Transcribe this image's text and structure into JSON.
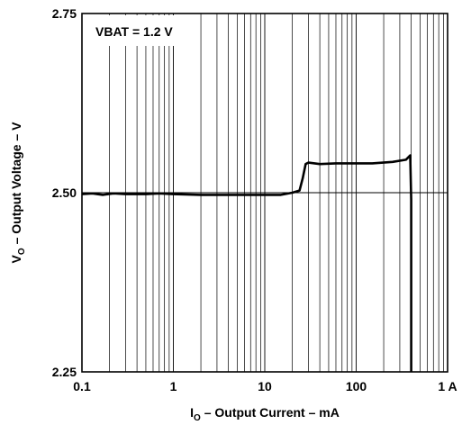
{
  "chart_data": {
    "type": "line",
    "title": "",
    "annotation": "VBAT = 1.2 V",
    "xlabel": {
      "prefix": "I",
      "subscript": "O",
      "rest": " – Output Current – mA"
    },
    "ylabel": {
      "prefix": "V",
      "subscript": "O",
      "rest": " – Output Voltage – V"
    },
    "x_scale": "log",
    "xlim": [
      0.1,
      1000
    ],
    "ylim": [
      2.25,
      2.75
    ],
    "x_ticks": [
      {
        "value": 0.1,
        "label": "0.1"
      },
      {
        "value": 1,
        "label": "1"
      },
      {
        "value": 10,
        "label": "10"
      },
      {
        "value": 100,
        "label": "100"
      },
      {
        "value": 1000,
        "label": "1 A"
      }
    ],
    "y_ticks": [
      {
        "value": 2.25,
        "label": "2.25"
      },
      {
        "value": 2.5,
        "label": "2.50"
      },
      {
        "value": 2.75,
        "label": "2.75"
      }
    ],
    "grid": "log vertical minor grid, horizontal line at 2.50",
    "series": [
      {
        "x": [
          0.1,
          0.13,
          0.17,
          0.22,
          0.3,
          0.5,
          0.7,
          1,
          2,
          5,
          10,
          15,
          20,
          24,
          26,
          28,
          30,
          40,
          60,
          100,
          150,
          250,
          350,
          390,
          400,
          400
        ],
        "y": [
          2.498,
          2.499,
          2.497,
          2.499,
          2.498,
          2.498,
          2.499,
          2.498,
          2.497,
          2.497,
          2.497,
          2.497,
          2.5,
          2.503,
          2.52,
          2.54,
          2.542,
          2.54,
          2.541,
          2.541,
          2.541,
          2.543,
          2.546,
          2.552,
          2.49,
          2.25
        ]
      }
    ]
  }
}
